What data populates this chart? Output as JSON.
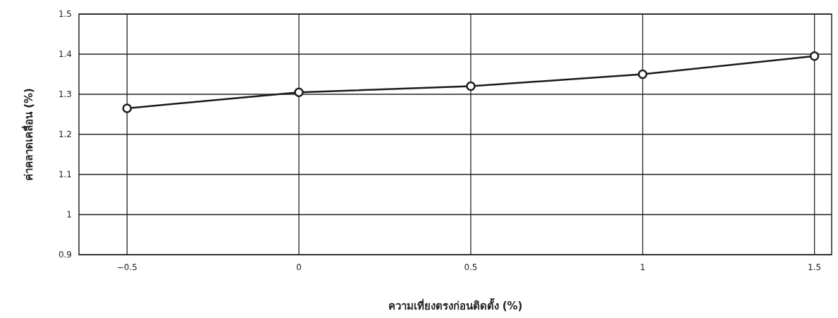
{
  "chart_data": {
    "type": "line",
    "xlabel": "ความเที่ยงตรงก่อนติดตั้ง (%)",
    "ylabel": "ค่าคลาดเคลื่อน (%)",
    "x": [
      -0.5,
      0,
      0.5,
      1,
      1.5
    ],
    "series": [
      {
        "color": "#1a1a1a",
        "values": [
          1.265,
          1.305,
          1.32,
          1.35,
          1.395
        ]
      }
    ],
    "xlim": [
      -0.64,
      1.55
    ],
    "xticks": [
      {
        "value": -0.5,
        "label": "−0.5"
      },
      0,
      0.5,
      1,
      1.5
    ],
    "ylim": [
      0.9,
      1.5
    ],
    "yticks": [
      0.9,
      1,
      1.1,
      1.2,
      1.3,
      1.4,
      1.5
    ],
    "grid": true,
    "marker": "circle",
    "line_style": "solid"
  }
}
